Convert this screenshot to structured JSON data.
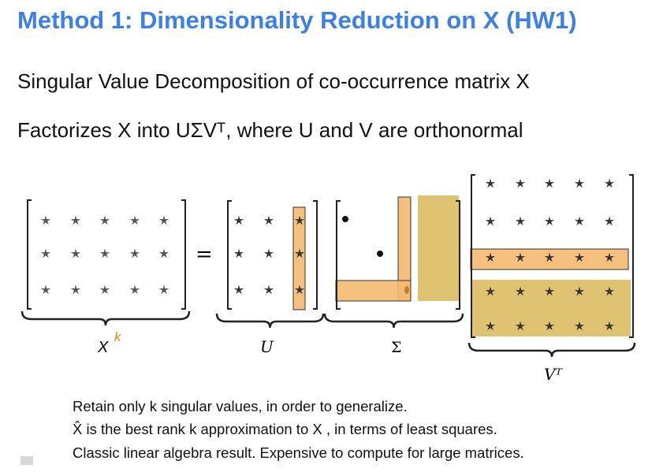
{
  "title": "Method 1: Dimensionality Reduction on X (HW1)",
  "lines": [
    "Singular Value Decomposition of co-occurrence matrix X",
    "Factorizes X into UΣVᵀ, where U and V are orthonormal"
  ],
  "diagram": {
    "labels": {
      "x": "X",
      "k": "k",
      "equals": "=",
      "u": "U",
      "sigma": "Σ",
      "vt": "Vᵀ"
    },
    "colors": {
      "highlight_orange": "#f4b970",
      "highlight_tan": "#e0c273",
      "k_label": "#e8861c"
    }
  },
  "notes": [
    "Retain only k singular values, in order to generalize.",
    "X̂ is the best rank k approximation to X , in terms of least squares.",
    "Classic linear algebra result. Expensive to compute for large matrices."
  ]
}
